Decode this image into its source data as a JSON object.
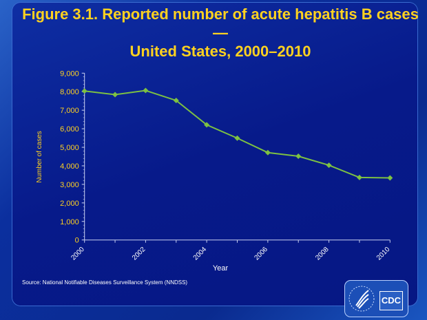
{
  "chart_data": {
    "type": "line",
    "title": "Figure 3.1. Reported number of acute hepatitis B cases — United States, 2000–2010",
    "title_lines": [
      "Figure 3.1. Reported number of acute hepatitis B cases —",
      "United States, 2000–2010"
    ],
    "xlabel": "Year",
    "ylabel": "Number of cases",
    "x": [
      2000,
      2001,
      2002,
      2003,
      2004,
      2005,
      2006,
      2007,
      2008,
      2009,
      2010
    ],
    "values": [
      8036,
      7843,
      8064,
      7526,
      6212,
      5494,
      4713,
      4519,
      4033,
      3371,
      3350
    ],
    "xticks": [
      "2000",
      "2002",
      "2004",
      "2006",
      "2008",
      "2010"
    ],
    "yticks": [
      "0",
      "1,000",
      "2,000",
      "3,000",
      "4,000",
      "5,000",
      "6,000",
      "7,000",
      "8,000",
      "9,000"
    ],
    "ylim": [
      0,
      9000
    ],
    "xlim": [
      2000,
      2010
    ],
    "grid": false,
    "line_color": "#7dc142",
    "title_color": "#ffd21f",
    "tick_color": "#ffd21f"
  },
  "source": "Source: National Notifiable Diseases Surveillance System (NNDSS)",
  "logo": {
    "text": "CDC"
  }
}
